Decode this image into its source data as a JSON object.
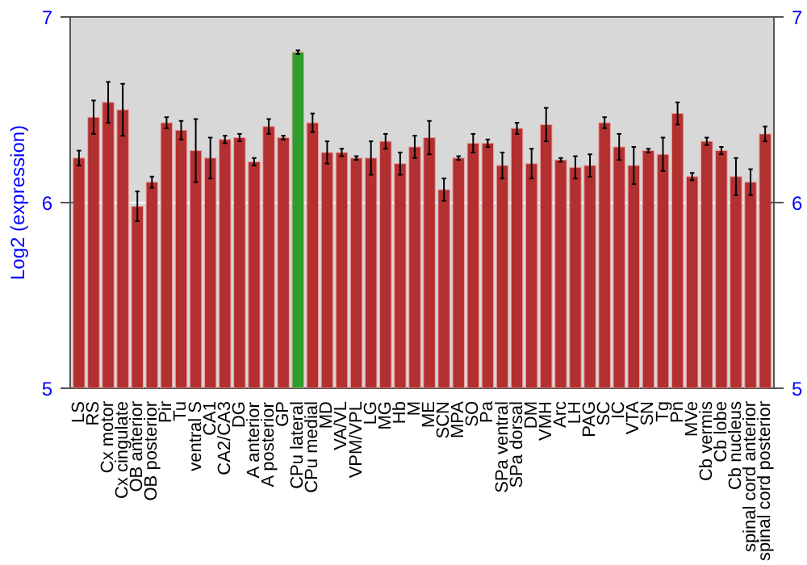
{
  "chart_data": {
    "type": "bar",
    "ylabel": "Log2 (expression)",
    "categories": [
      "LS",
      "RS",
      "Cx motor",
      "Cx cingulate",
      "OB anterior",
      "OB posterior",
      "Pir",
      "Tu",
      "ventral S",
      "CA1",
      "CA2/CA3",
      "DG",
      "A anterior",
      "A posterior",
      "GP",
      "CPu lateral",
      "CPu medial",
      "MD",
      "VA/VL",
      "VPM/VPL",
      "LG",
      "MG",
      "Hb",
      "M",
      "ME",
      "SCN",
      "MPA",
      "SO",
      "Pa",
      "SPa ventral",
      "SPa dorsal",
      "DM",
      "VMH",
      "Arc",
      "LH",
      "PAG",
      "SC",
      "IC",
      "VTA",
      "SN",
      "Tg",
      "Pn",
      "MVe",
      "Cb vermis",
      "Cb lobe",
      "Cb nucleus",
      "spinal cord anterior",
      "spinal cord posterior"
    ],
    "values": [
      6.24,
      6.46,
      6.54,
      6.5,
      5.98,
      6.11,
      6.43,
      6.39,
      6.28,
      6.24,
      6.34,
      6.35,
      6.22,
      6.41,
      6.35,
      6.81,
      6.43,
      6.27,
      6.27,
      6.24,
      6.24,
      6.33,
      6.21,
      6.3,
      6.35,
      6.07,
      6.24,
      6.32,
      6.32,
      6.2,
      6.4,
      6.21,
      6.42,
      6.23,
      6.19,
      6.2,
      6.43,
      6.3,
      6.2,
      6.28,
      6.26,
      6.48,
      6.14,
      6.33,
      6.28,
      6.14,
      6.11,
      6.37
    ],
    "errors": [
      0.04,
      0.09,
      0.11,
      0.14,
      0.08,
      0.03,
      0.03,
      0.05,
      0.17,
      0.11,
      0.02,
      0.02,
      0.02,
      0.04,
      0.01,
      0.01,
      0.05,
      0.06,
      0.02,
      0.01,
      0.09,
      0.04,
      0.06,
      0.06,
      0.09,
      0.06,
      0.01,
      0.05,
      0.02,
      0.07,
      0.03,
      0.08,
      0.09,
      0.01,
      0.06,
      0.06,
      0.03,
      0.07,
      0.1,
      0.01,
      0.09,
      0.06,
      0.02,
      0.02,
      0.02,
      0.1,
      0.07,
      0.04
    ],
    "colors": [
      "#b23030",
      "#b23030",
      "#b23030",
      "#b23030",
      "#b23030",
      "#b23030",
      "#b23030",
      "#b23030",
      "#b23030",
      "#b23030",
      "#b23030",
      "#b23030",
      "#b23030",
      "#b23030",
      "#b23030",
      "#2e9e2e",
      "#b23030",
      "#b23030",
      "#b23030",
      "#b23030",
      "#b23030",
      "#b23030",
      "#b23030",
      "#b23030",
      "#b23030",
      "#b23030",
      "#b23030",
      "#b23030",
      "#b23030",
      "#b23030",
      "#b23030",
      "#b23030",
      "#b23030",
      "#b23030",
      "#b23030",
      "#b23030",
      "#b23030",
      "#b23030",
      "#b23030",
      "#b23030",
      "#b23030",
      "#b23030",
      "#b23030",
      "#b23030",
      "#b23030",
      "#b23030",
      "#b23030",
      "#b23030"
    ],
    "ylim": [
      5,
      7
    ],
    "yticks": [
      5,
      6,
      7
    ],
    "y2lim": [
      5,
      7
    ],
    "y2ticks": [
      5,
      6,
      7
    ],
    "grid": "y"
  }
}
